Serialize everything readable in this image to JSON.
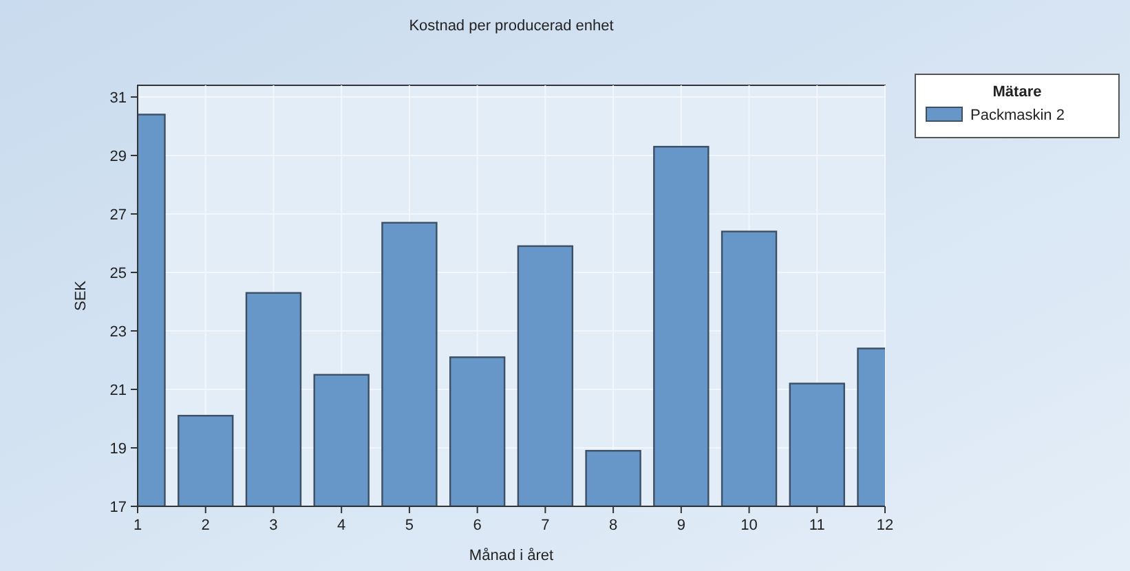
{
  "chart_data": {
    "type": "bar",
    "title": "Kostnad per producerad enhet",
    "xlabel": "Månad i året",
    "ylabel": "SEK",
    "legend_title": "Mätare",
    "x": [
      1,
      2,
      3,
      4,
      5,
      6,
      7,
      8,
      9,
      10,
      11,
      12
    ],
    "series": [
      {
        "name": "Packmaskin 2",
        "color": "#6797c8",
        "values": [
          30.4,
          20.1,
          24.3,
          21.5,
          26.7,
          22.1,
          25.9,
          18.9,
          29.3,
          26.4,
          21.2,
          22.4
        ]
      }
    ],
    "xlim": [
      1,
      12
    ],
    "xticks": [
      1,
      2,
      3,
      4,
      5,
      6,
      7,
      8,
      9,
      10,
      11,
      12
    ],
    "ylim": [
      17,
      31.4
    ],
    "yticks": [
      17,
      19,
      21,
      23,
      25,
      27,
      29,
      31
    ],
    "grid": true,
    "legend": "top right"
  }
}
